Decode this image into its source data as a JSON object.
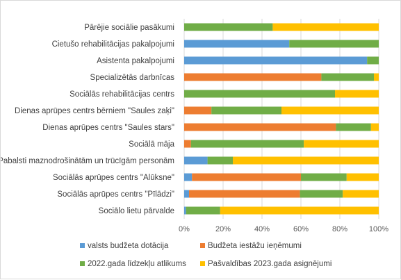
{
  "chart_data": {
    "type": "bar",
    "orientation": "horizontal",
    "stacked": "percent",
    "categories": [
      "Pārējie sociālie pasākumi",
      "Cietušo rehabilitācijas pakalpojumi",
      "Asistenta pakalpojumi",
      "Specializētās darbnīcas",
      "Sociālās rehabilitācijas centrs",
      "Dienas aprūpes centrs bērniem \"Saules zaķi\"",
      "Dienas aprūpes centrs \"Saules stars\"",
      "Sociālā māja",
      "Pabalsti maznodrošinātām un trūcīgām personām",
      "Sociālās aprūpes centrs \"Alūksne\"",
      "Sociālās aprūpes centrs \"Pīlādzi\"",
      "Sociālo lietu pārvalde"
    ],
    "series": [
      {
        "name": "valsts budžeta dotācija",
        "color": "#5b9bd5",
        "values": [
          0,
          54,
          94,
          0,
          0,
          0,
          0,
          0,
          12,
          4,
          2.5,
          1
        ]
      },
      {
        "name": "Budžeta iestāžu ieņēmumi",
        "color": "#ed7d31",
        "values": [
          0,
          0,
          0,
          70.5,
          0,
          14,
          78,
          3.5,
          0,
          56,
          57,
          0
        ]
      },
      {
        "name": "2022.gada līdzekļu atlikums",
        "color": "#70ad47",
        "values": [
          45.5,
          46,
          6,
          27,
          77.5,
          36,
          18,
          58,
          13,
          23.5,
          22,
          17.5
        ]
      },
      {
        "name": "Pašvaldības 2023.gada asignējumi",
        "color": "#ffc000",
        "values": [
          54.5,
          0,
          0,
          2.5,
          22.5,
          50,
          4,
          38.5,
          75,
          16.5,
          18.5,
          81.5
        ]
      }
    ],
    "xlim": [
      0,
      100
    ],
    "x_ticks": [
      "0%",
      "20%",
      "40%",
      "60%",
      "80%",
      "100%"
    ],
    "grid": true,
    "legend_position": "bottom"
  }
}
